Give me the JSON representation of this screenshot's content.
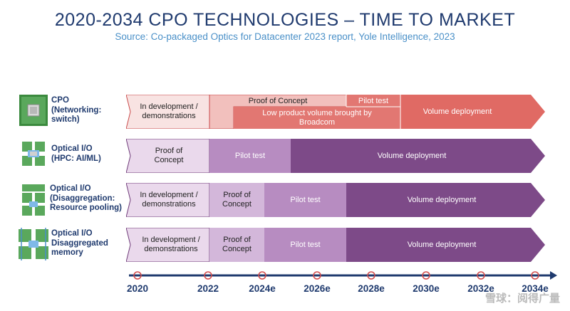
{
  "header": {
    "title": "2020-2034 CPO TECHNOLOGIES – TIME TO MARKET",
    "subtitle": "Source: Co-packaged Optics for Datacenter 2023 report, Yole Intelligence, 2023"
  },
  "rows": [
    {
      "label": "CPO\n(Networking:\nswitch)",
      "segments": {
        "in_dev": "In development /\ndemonstrations",
        "poc": "Proof of Concept",
        "pilot": "Pilot test",
        "low_volume": "Low product volume brought by\nBroadcom",
        "volume": "Volume deployment"
      }
    },
    {
      "label": "Optical I/O\n(HPC: AI/ML)",
      "segments": {
        "poc": "Proof of\nConcept",
        "pilot": "Pilot test",
        "volume": "Volume deployment"
      }
    },
    {
      "label": "Optical I/O\n(Disaggregation:\nResource pooling)",
      "segments": {
        "in_dev": "In development /\ndemonstrations",
        "poc": "Proof of\nConcept",
        "pilot": "Pilot test",
        "volume": "Volume deployment"
      }
    },
    {
      "label": "Optical I/O\nDisaggregated\nmemory",
      "segments": {
        "in_dev": "In development /\ndemonstrations",
        "poc": "Proof of\nConcept",
        "pilot": "Pilot test",
        "volume": "Volume deployment"
      }
    }
  ],
  "timeline": {
    "years": [
      "2020",
      "2022",
      "2024e",
      "2026e",
      "2028e",
      "2030e",
      "2032e",
      "2034e"
    ]
  },
  "watermark": "雪球：阅得广量"
}
